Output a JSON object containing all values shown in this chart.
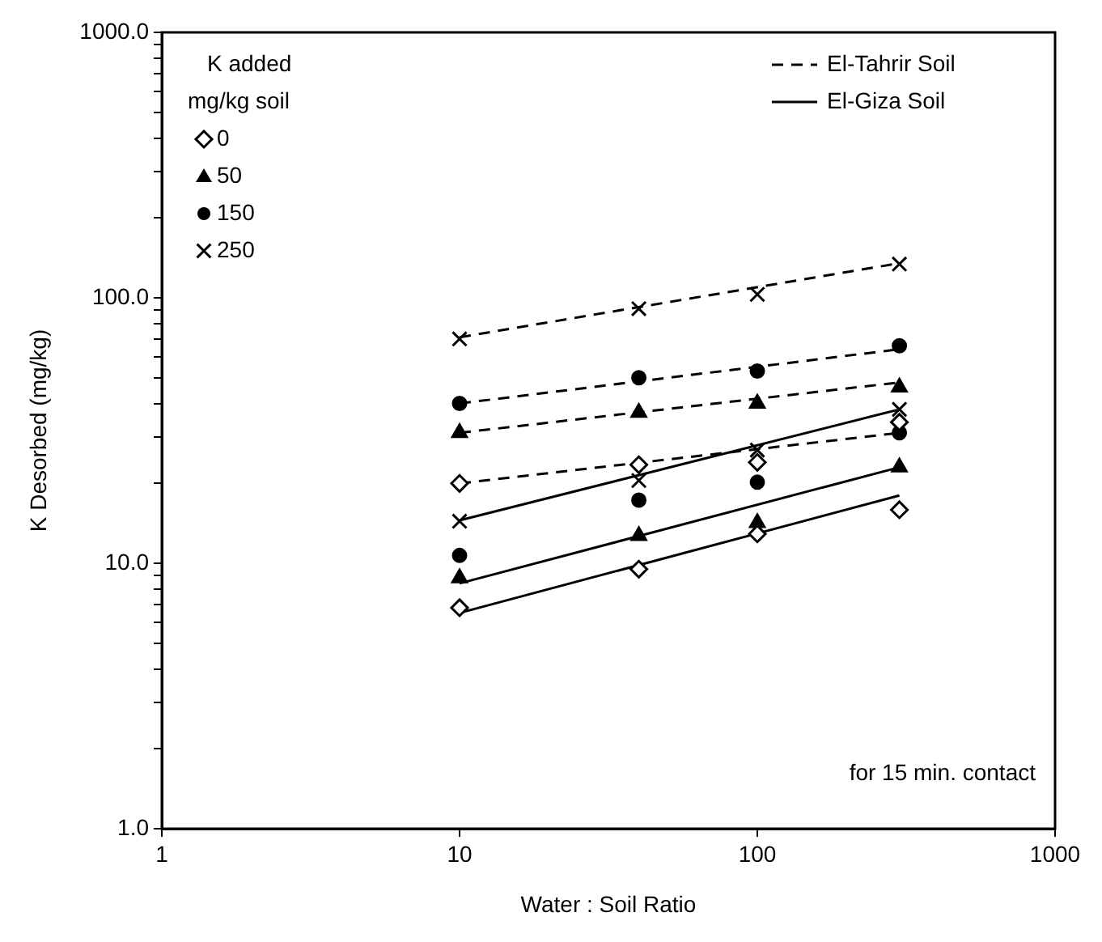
{
  "chart_data": {
    "type": "scatter",
    "xlabel": "Water : Soil Ratio",
    "ylabel": "K Desorbed (mg/kg)",
    "legend_title": "K added\nmg/kg soil",
    "log": "xy",
    "grid": false,
    "legend": "top",
    "xlim": [
      1,
      1000
    ],
    "xticks": [
      1,
      10,
      100,
      1000
    ],
    "ylim": [
      1,
      1000
    ],
    "yticks": [
      {
        "value": 1,
        "label": "1.0"
      },
      {
        "value": 2,
        "label": null
      },
      {
        "value": 3,
        "label": null
      },
      {
        "value": 4,
        "label": null
      },
      {
        "value": 5,
        "label": null
      },
      {
        "value": 6,
        "label": null
      },
      {
        "value": 7,
        "label": null
      },
      {
        "value": 8,
        "label": null
      },
      {
        "value": 9,
        "label": null
      },
      {
        "value": 10,
        "label": "10.0"
      },
      {
        "value": 20,
        "label": null
      },
      {
        "value": 30,
        "label": null
      },
      {
        "value": 40,
        "label": null
      },
      {
        "value": 50,
        "label": null
      },
      {
        "value": 60,
        "label": null
      },
      {
        "value": 70,
        "label": null
      },
      {
        "value": 80,
        "label": null
      },
      {
        "value": 90,
        "label": null
      },
      {
        "value": 100,
        "label": "100.0"
      },
      {
        "value": 200,
        "label": null
      },
      {
        "value": 300,
        "label": null
      },
      {
        "value": 400,
        "label": null
      },
      {
        "value": 500,
        "label": null
      },
      {
        "value": 600,
        "label": null
      },
      {
        "value": 700,
        "label": null
      },
      {
        "value": 800,
        "label": null
      },
      {
        "value": 900,
        "label": null
      },
      {
        "value": 1000,
        "label": "1000.0"
      }
    ],
    "annotations": [
      "for 15 min. contact"
    ],
    "series": [
      {
        "name": "0",
        "type": "scatter",
        "marker": "diamond",
        "color": "#000000",
        "x": [
          10,
          40,
          100,
          300,
          10,
          40,
          100,
          300
        ],
        "values": [
          20,
          23.5,
          24,
          34,
          6.8,
          9.5,
          12.9,
          15.9
        ]
      },
      {
        "name": "50",
        "type": "scatter",
        "marker": "triangle",
        "color": "#000000",
        "x": [
          10,
          40,
          100,
          300,
          10,
          40,
          100,
          300
        ],
        "values": [
          31,
          37,
          40,
          46,
          8.8,
          12.7,
          14.2,
          23
        ]
      },
      {
        "name": "150",
        "type": "scatter",
        "marker": "circle",
        "color": "#000000",
        "x": [
          10,
          40,
          100,
          300,
          10,
          40,
          100,
          300
        ],
        "values": [
          40,
          50,
          53,
          66,
          10.7,
          17.3,
          20.2,
          31
        ]
      },
      {
        "name": "250",
        "type": "scatter",
        "marker": "cross",
        "color": "#000000",
        "x": [
          10,
          40,
          100,
          300,
          10,
          40,
          100,
          300
        ],
        "values": [
          70,
          91,
          103,
          134,
          14.4,
          20.5,
          26.7,
          38
        ]
      },
      {
        "name": "El-Tahrir Soil",
        "type": "line",
        "line_style": "dashed",
        "color": "#000000",
        "x": [
          10,
          300
        ],
        "values": [
          71,
          135
        ]
      },
      {
        "type": "line",
        "line_style": "dashed",
        "color": "#000000",
        "x": [
          10,
          300
        ],
        "values": [
          40,
          64
        ]
      },
      {
        "type": "line",
        "line_style": "dashed",
        "color": "#000000",
        "x": [
          10,
          300
        ],
        "values": [
          31,
          48
        ]
      },
      {
        "type": "line",
        "line_style": "dashed",
        "color": "#000000",
        "x": [
          10,
          300
        ],
        "values": [
          20,
          31
        ]
      },
      {
        "name": "El-Giza Soil",
        "type": "line",
        "line_style": "solid",
        "color": "#000000",
        "x": [
          10,
          300
        ],
        "values": [
          14.5,
          38
        ]
      },
      {
        "type": "line",
        "line_style": "solid",
        "color": "#000000",
        "x": [
          10,
          300
        ],
        "values": [
          8.4,
          23
        ]
      },
      {
        "type": "line",
        "line_style": "solid",
        "color": "#000000",
        "x": [
          10,
          300
        ],
        "values": [
          6.5,
          18
        ]
      }
    ]
  }
}
